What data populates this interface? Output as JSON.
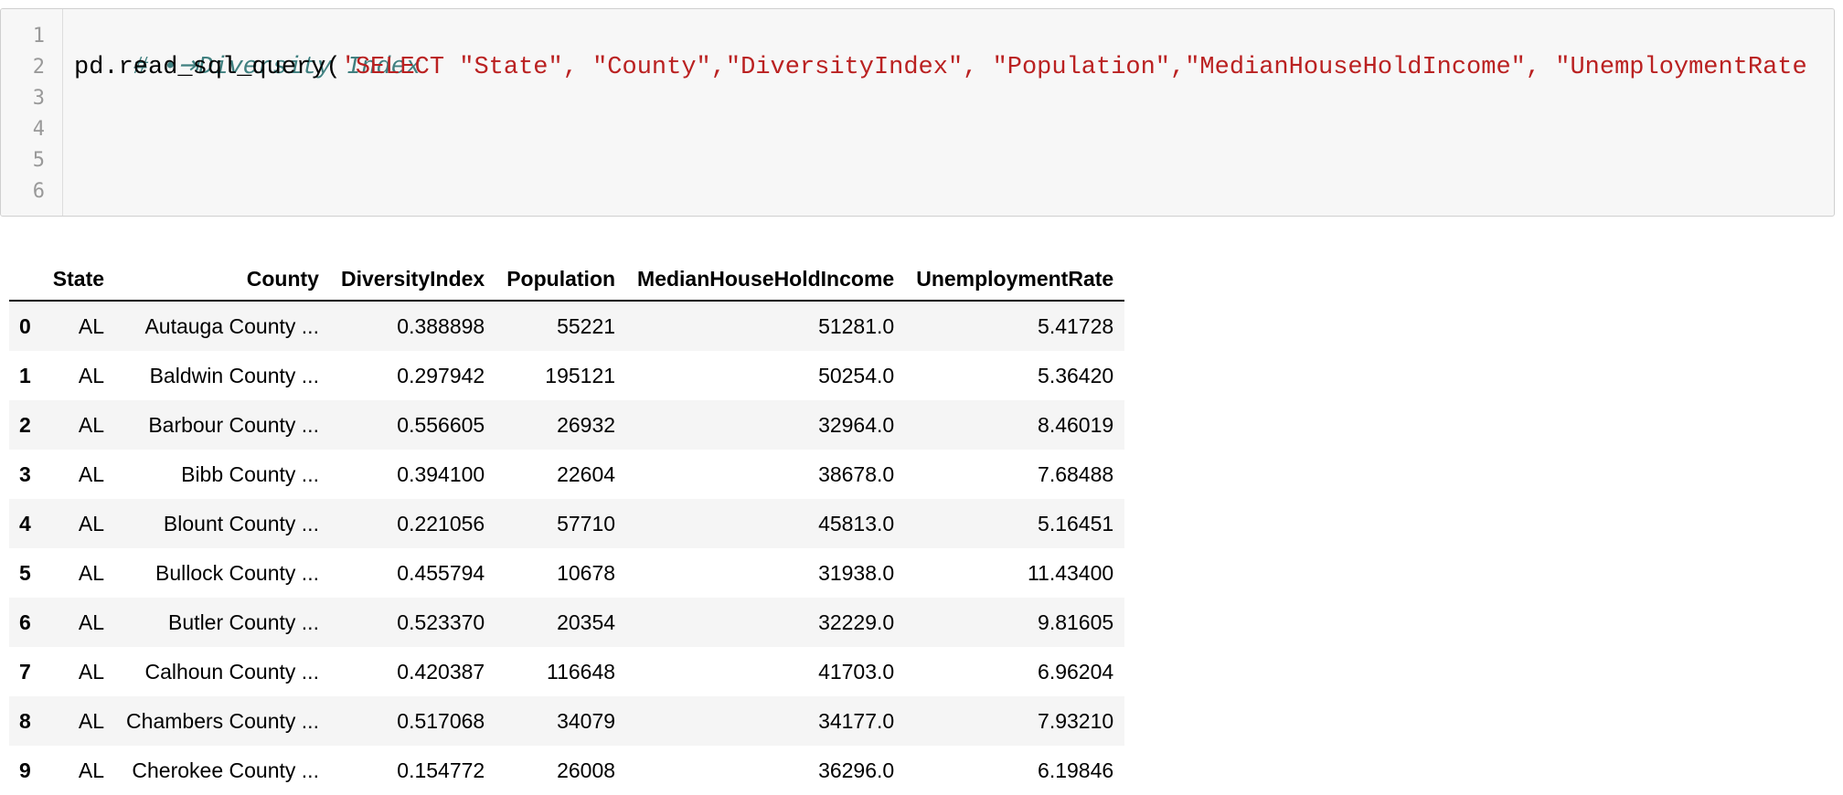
{
  "cell": {
    "line_numbers": [
      "1",
      "2",
      "3",
      "4",
      "5",
      "6"
    ],
    "line1": {
      "comment": "# •⇥Diversity Index"
    },
    "line2": {
      "code": "pd.read_sql_query(",
      "string": "'SELECT \"State\", \"County\",\"DiversityIndex\", \"Population\",\"MedianHouseHoldIncome\", \"UnemploymentRate"
    }
  },
  "table": {
    "columns": [
      "",
      "State",
      "County",
      "DiversityIndex",
      "Population",
      "MedianHouseHoldIncome",
      "UnemploymentRate"
    ],
    "rows": [
      [
        "0",
        "AL",
        "Autauga County ...",
        "0.388898",
        "55221",
        "51281.0",
        "5.41728"
      ],
      [
        "1",
        "AL",
        "Baldwin County ...",
        "0.297942",
        "195121",
        "50254.0",
        "5.36420"
      ],
      [
        "2",
        "AL",
        "Barbour County ...",
        "0.556605",
        "26932",
        "32964.0",
        "8.46019"
      ],
      [
        "3",
        "AL",
        "Bibb County ...",
        "0.394100",
        "22604",
        "38678.0",
        "7.68488"
      ],
      [
        "4",
        "AL",
        "Blount County ...",
        "0.221056",
        "57710",
        "45813.0",
        "5.16451"
      ],
      [
        "5",
        "AL",
        "Bullock County ...",
        "0.455794",
        "10678",
        "31938.0",
        "11.43400"
      ],
      [
        "6",
        "AL",
        "Butler County ...",
        "0.523370",
        "20354",
        "32229.0",
        "9.81605"
      ],
      [
        "7",
        "AL",
        "Calhoun County ...",
        "0.420387",
        "116648",
        "41703.0",
        "6.96204"
      ],
      [
        "8",
        "AL",
        "Chambers County ...",
        "0.517068",
        "34079",
        "34177.0",
        "7.93210"
      ],
      [
        "9",
        "AL",
        "Cherokee County ...",
        "0.154772",
        "26008",
        "36296.0",
        "6.19846"
      ]
    ]
  }
}
